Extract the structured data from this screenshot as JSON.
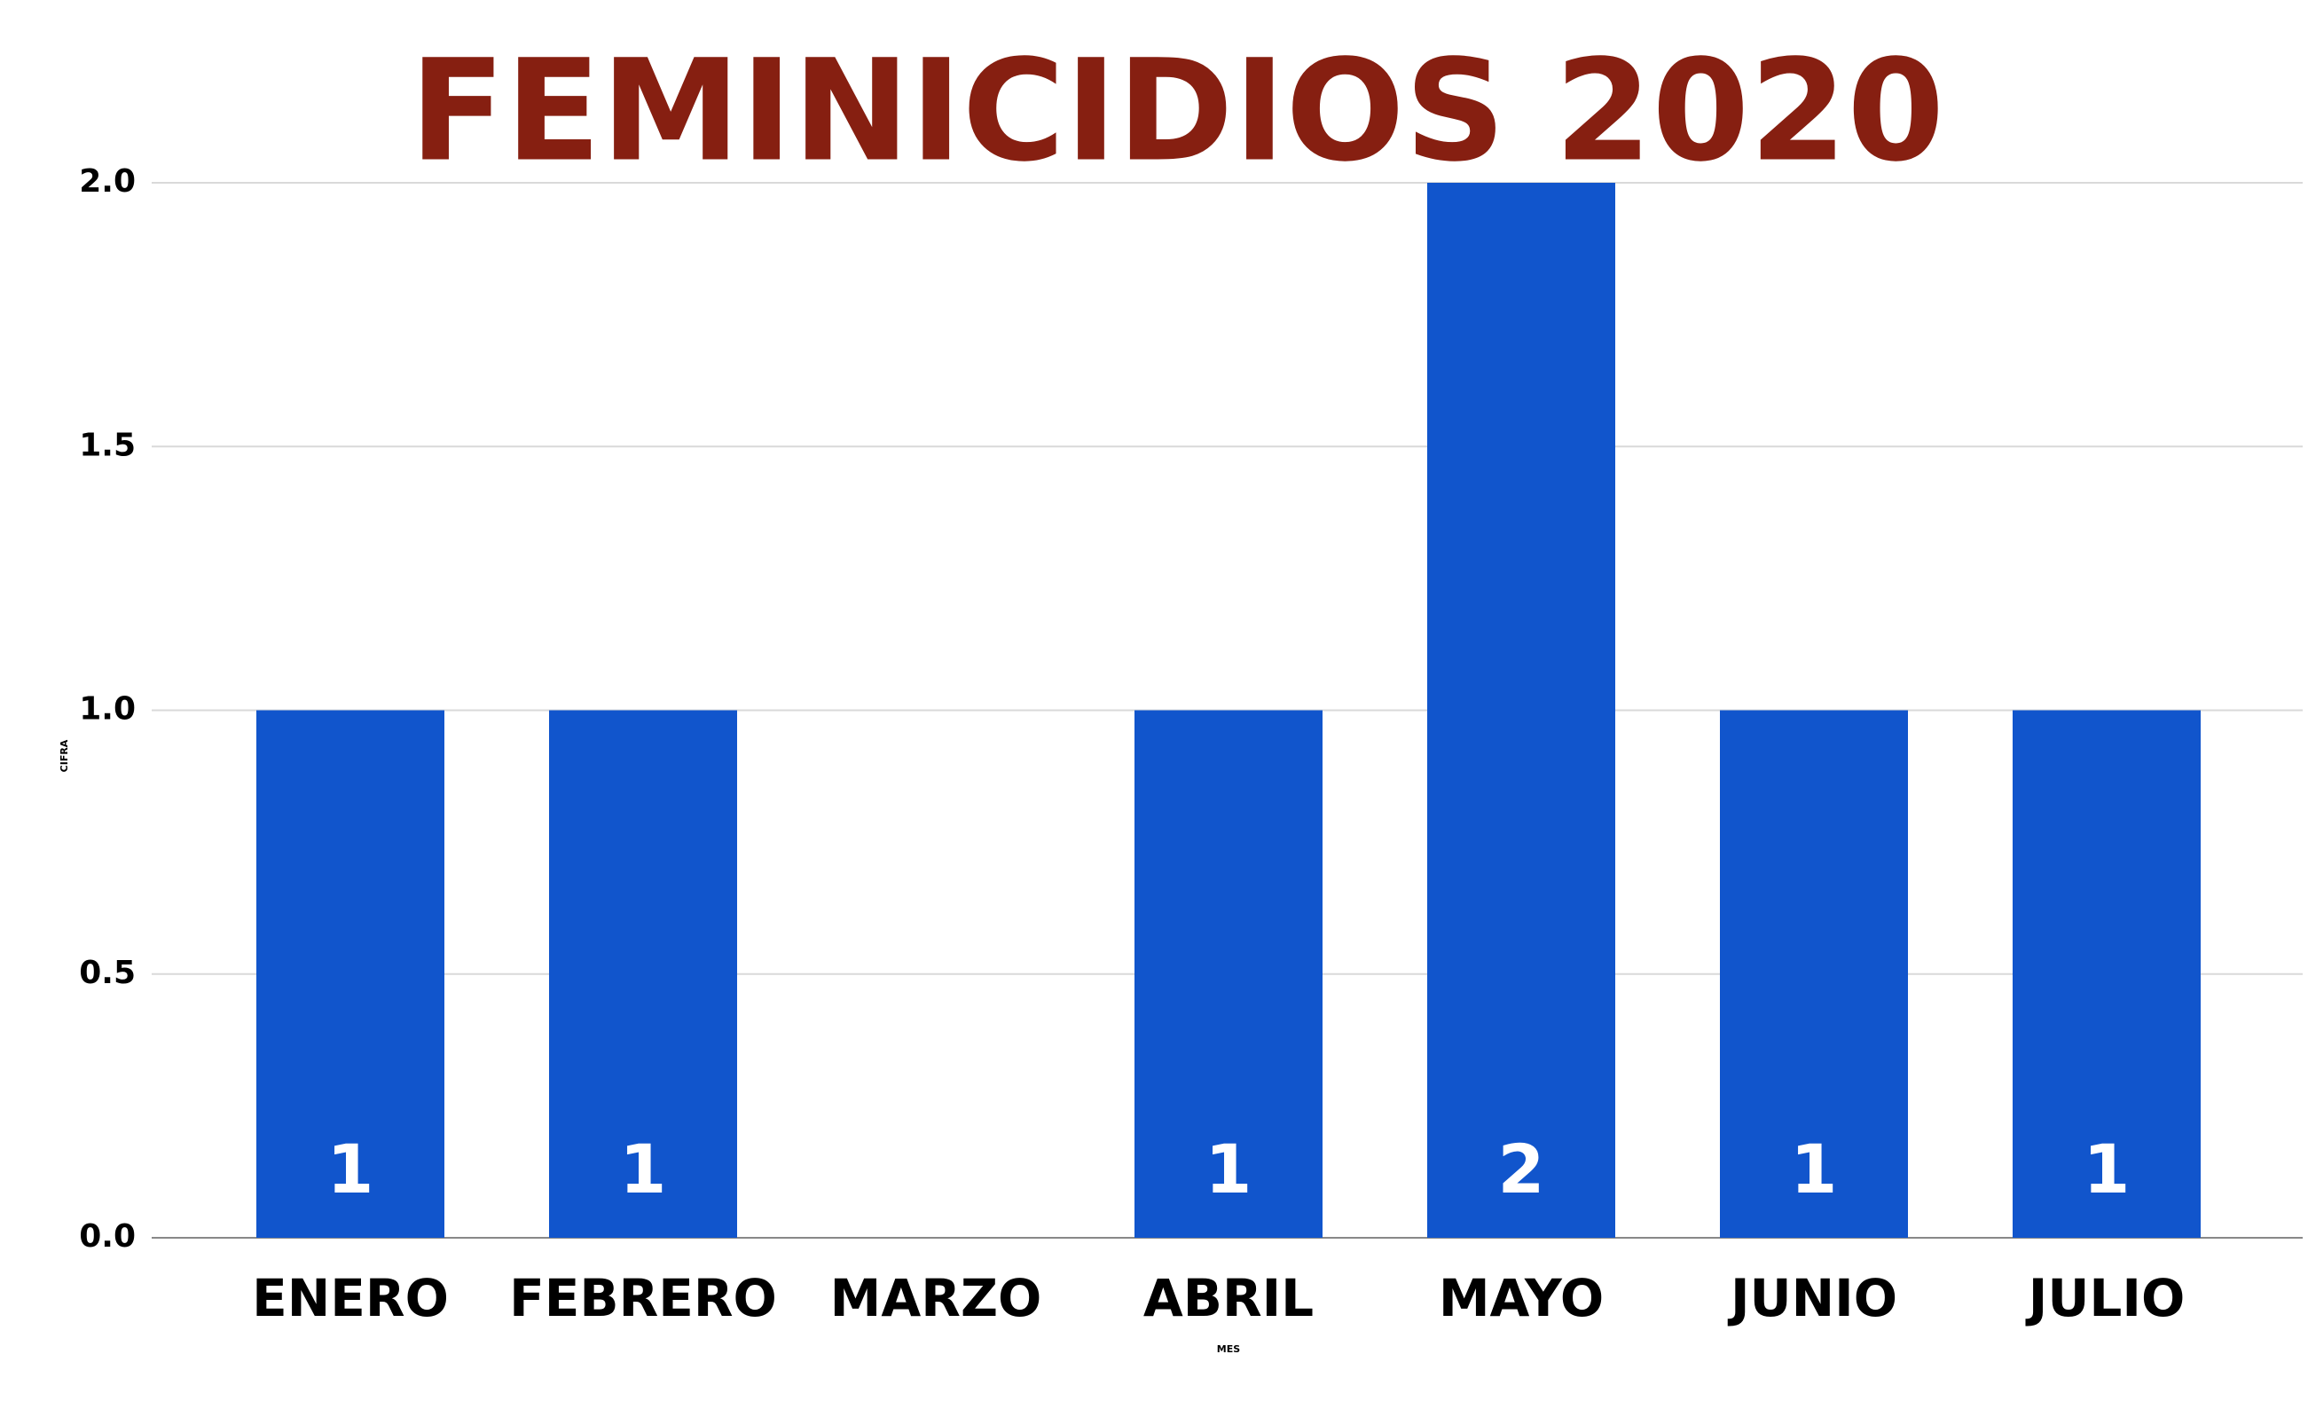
{
  "chart_data": {
    "type": "bar",
    "title": "FEMINICIDIOS 2020",
    "x_label": "MES",
    "y_label": "CIFRA",
    "categories": [
      "ENERO",
      "FEBRERO",
      "MARZO",
      "ABRIL",
      "MAYO",
      "JUNIO",
      "JULIO"
    ],
    "values": [
      1,
      1,
      0,
      1,
      2,
      1,
      1
    ],
    "color": "#1155cc",
    "title_color": "#861f11",
    "ylim": [
      0,
      2
    ],
    "yticks": [
      {
        "value": 0,
        "label": "0.0"
      },
      {
        "value": 0.5,
        "label": "0.5"
      },
      {
        "value": 1,
        "label": "1.0"
      },
      {
        "value": 1.5,
        "label": "1.5"
      },
      {
        "value": 2,
        "label": "2.0"
      }
    ],
    "grid": true
  }
}
